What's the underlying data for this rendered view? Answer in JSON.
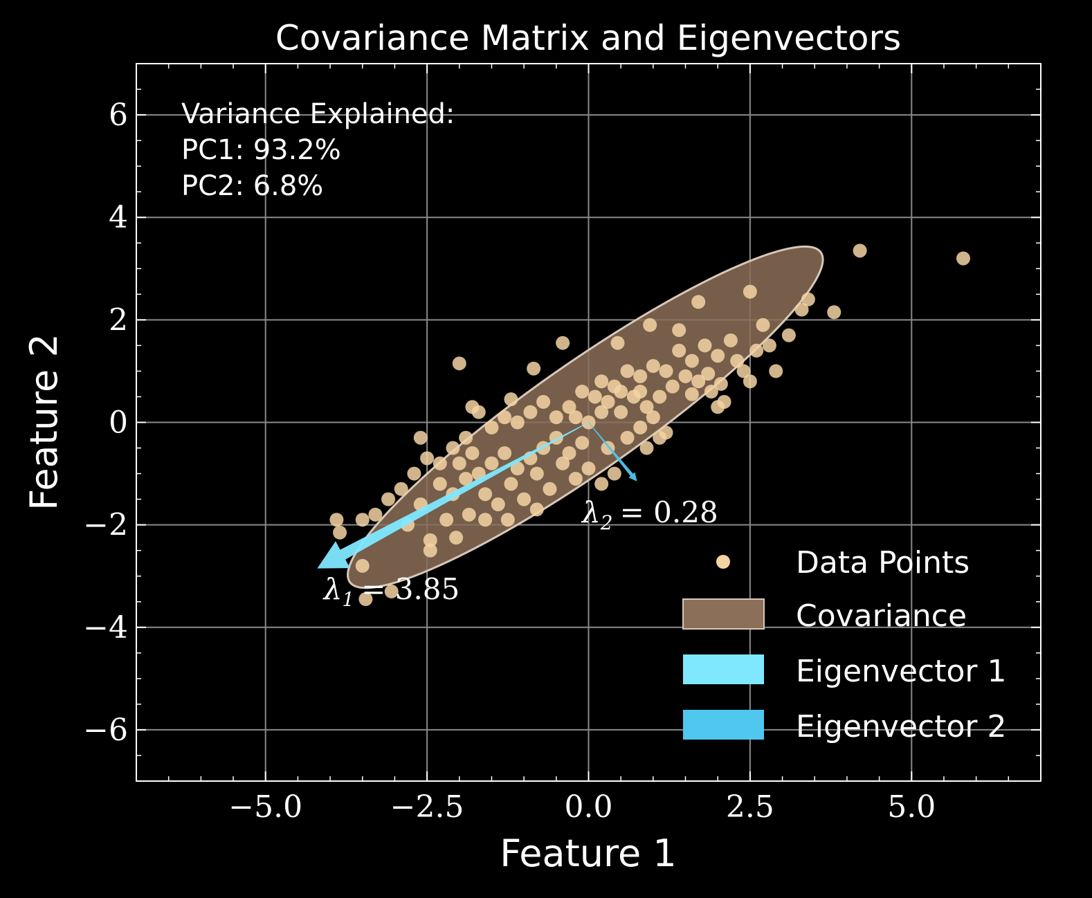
{
  "chart_data": {
    "type": "scatter",
    "title": "Covariance Matrix and Eigenvectors",
    "xlabel": "Feature 1",
    "ylabel": "Feature 2",
    "xlim": [
      -7,
      7
    ],
    "ylim": [
      -7,
      7
    ],
    "xticks": [
      -5.0,
      -2.5,
      0.0,
      2.5,
      5.0
    ],
    "xtick_labels": [
      "−5.0",
      "−2.5",
      "0.0",
      "2.5",
      "5.0"
    ],
    "yticks": [
      -6,
      -4,
      -2,
      0,
      2,
      4,
      6
    ],
    "ytick_labels": [
      "−6",
      "−4",
      "−2",
      "0",
      "2",
      "4",
      "6"
    ],
    "grid": true,
    "variance_text": {
      "heading": "Variance Explained:",
      "pc1": "PC1:  93.2%",
      "pc2": "PC2:  6.8%"
    },
    "eigen_labels": [
      {
        "name": "λ",
        "sub": "1",
        "value": "= 3.85",
        "x": -4.1,
        "y": -3.45
      },
      {
        "name": "λ",
        "sub": "2",
        "value": "= 0.28",
        "x": -0.1,
        "y": -1.95
      }
    ],
    "ellipse": {
      "center": [
        -0.05,
        0.1
      ],
      "width_major": 8.9,
      "width_minor": 2.1,
      "angle_deg": 35,
      "color": "#8b6f58"
    },
    "eigenvectors": [
      {
        "name": "Eigenvector 1",
        "from": [
          0,
          0
        ],
        "to": [
          -4.2,
          -2.85
        ],
        "color": "#7fe8ff"
      },
      {
        "name": "Eigenvector 2",
        "from": [
          0,
          0
        ],
        "to": [
          0.75,
          -1.15
        ],
        "color": "#4fc7ef"
      }
    ],
    "point_color": "#f4d3a3",
    "legend": {
      "placement": "lower-right",
      "entries": [
        "Data Points",
        "Covariance",
        "Eigenvector 1",
        "Eigenvector 2"
      ]
    },
    "series": [
      {
        "name": "Data Points",
        "points": [
          [
            4.2,
            3.35
          ],
          [
            5.8,
            3.2
          ],
          [
            2.5,
            2.55
          ],
          [
            3.4,
            2.4
          ],
          [
            3.3,
            2.2
          ],
          [
            3.8,
            2.15
          ],
          [
            1.7,
            2.35
          ],
          [
            0.95,
            1.9
          ],
          [
            3.1,
            1.7
          ],
          [
            2.9,
            1.0
          ],
          [
            -0.4,
            1.55
          ],
          [
            0.45,
            1.55
          ],
          [
            -2.0,
            1.15
          ],
          [
            -0.85,
            1.05
          ],
          [
            2.7,
            1.9
          ],
          [
            2.2,
            1.6
          ],
          [
            2.0,
            1.3
          ],
          [
            1.8,
            1.5
          ],
          [
            1.6,
            1.2
          ],
          [
            1.4,
            1.4
          ],
          [
            1.2,
            1.0
          ],
          [
            1.0,
            1.1
          ],
          [
            0.8,
            0.9
          ],
          [
            0.6,
            1.0
          ],
          [
            0.4,
            0.7
          ],
          [
            0.2,
            0.8
          ],
          [
            1.3,
            0.7
          ],
          [
            1.5,
            0.9
          ],
          [
            1.7,
            0.8
          ],
          [
            1.9,
            0.6
          ],
          [
            2.3,
            1.2
          ],
          [
            2.5,
            0.8
          ],
          [
            2.1,
            0.4
          ],
          [
            2.6,
            1.4
          ],
          [
            1.1,
            0.5
          ],
          [
            0.9,
            0.3
          ],
          [
            0.7,
            0.5
          ],
          [
            0.5,
            0.2
          ],
          [
            0.3,
            0.4
          ],
          [
            0.1,
            0.5
          ],
          [
            -0.1,
            0.6
          ],
          [
            -0.3,
            0.3
          ],
          [
            -0.5,
            0.1
          ],
          [
            -0.7,
            0.4
          ],
          [
            -0.9,
            0.2
          ],
          [
            -1.1,
            0.0
          ],
          [
            -1.3,
            0.1
          ],
          [
            -1.5,
            -0.1
          ],
          [
            -1.7,
            0.2
          ],
          [
            -1.9,
            -0.3
          ],
          [
            -2.1,
            -0.5
          ],
          [
            -2.3,
            -0.8
          ],
          [
            -2.5,
            -0.7
          ],
          [
            -2.7,
            -1.0
          ],
          [
            -2.9,
            -1.3
          ],
          [
            -3.1,
            -1.5
          ],
          [
            -3.3,
            -1.8
          ],
          [
            -3.5,
            -1.9
          ],
          [
            -3.9,
            -1.9
          ],
          [
            -3.85,
            -2.15
          ],
          [
            -3.5,
            -2.8
          ],
          [
            -3.45,
            -3.45
          ],
          [
            -3.05,
            -3.3
          ],
          [
            -2.45,
            -2.5
          ],
          [
            -2.45,
            -2.3
          ],
          [
            -2.05,
            -2.25
          ],
          [
            -1.85,
            -1.8
          ],
          [
            -1.6,
            -1.4
          ],
          [
            -1.4,
            -1.6
          ],
          [
            -1.2,
            -1.2
          ],
          [
            -1.0,
            -1.5
          ],
          [
            -0.8,
            -1.0
          ],
          [
            -0.6,
            -1.3
          ],
          [
            -0.4,
            -0.8
          ],
          [
            -0.2,
            -1.1
          ],
          [
            0.0,
            -0.9
          ],
          [
            0.2,
            -1.2
          ],
          [
            0.4,
            -1.0
          ],
          [
            -0.1,
            -0.4
          ],
          [
            -0.3,
            -0.6
          ],
          [
            -0.5,
            -0.3
          ],
          [
            -0.7,
            -0.5
          ],
          [
            -0.9,
            -0.7
          ],
          [
            -1.1,
            -0.9
          ],
          [
            -1.3,
            -0.6
          ],
          [
            -1.5,
            -0.8
          ],
          [
            -1.7,
            -1.0
          ],
          [
            -1.9,
            -1.1
          ],
          [
            -2.1,
            -1.4
          ],
          [
            -2.3,
            -1.2
          ],
          [
            -2.6,
            -1.6
          ],
          [
            -2.0,
            -0.8
          ],
          [
            -1.8,
            0.3
          ],
          [
            -1.2,
            0.45
          ],
          [
            0.6,
            -0.3
          ],
          [
            0.8,
            -0.1
          ],
          [
            1.0,
            0.1
          ],
          [
            1.2,
            -0.2
          ],
          [
            0.8,
            0.6
          ],
          [
            2.0,
            0.3
          ],
          [
            1.4,
            1.8
          ],
          [
            2.4,
            1.0
          ],
          [
            2.8,
            1.5
          ],
          [
            0.0,
            0.0
          ],
          [
            0.2,
            0.2
          ],
          [
            -0.2,
            0.1
          ],
          [
            0.5,
            0.6
          ],
          [
            1.6,
            0.55
          ],
          [
            1.85,
            0.95
          ],
          [
            2.05,
            0.75
          ],
          [
            -2.6,
            -0.3
          ],
          [
            -1.6,
            -1.9
          ],
          [
            -1.25,
            -1.9
          ],
          [
            -0.8,
            -1.7
          ],
          [
            -2.8,
            -2.0
          ],
          [
            0.9,
            -0.5
          ],
          [
            1.1,
            -0.3
          ],
          [
            0.3,
            -0.5
          ],
          [
            -1.8,
            -0.6
          ],
          [
            -2.2,
            -1.9
          ]
        ]
      }
    ]
  }
}
